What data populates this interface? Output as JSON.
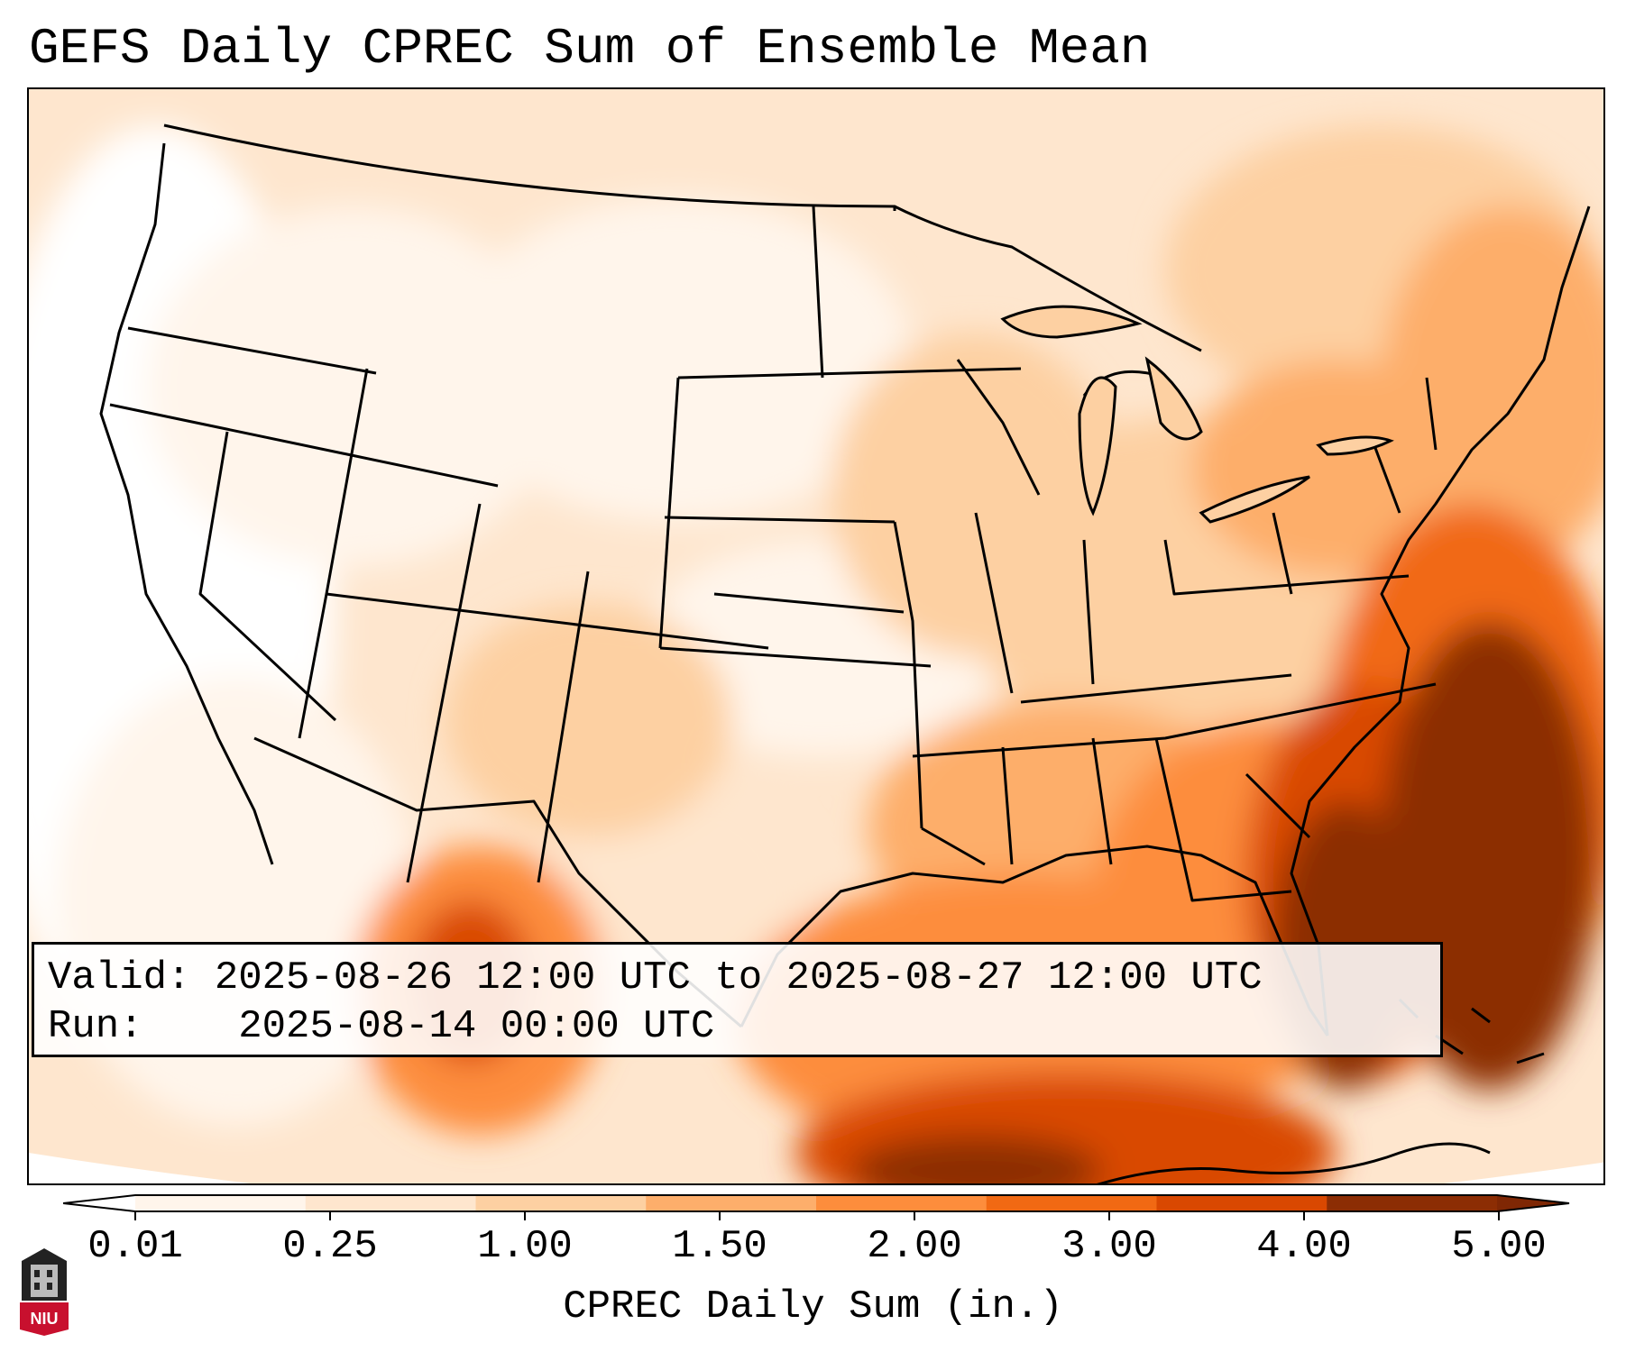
{
  "title": "GEFS Daily CPREC Sum of Ensemble Mean",
  "info": {
    "valid_label": "Valid:",
    "valid_value": "2025-08-26 12:00 UTC to 2025-08-27 12:00 UTC",
    "run_label": "Run:",
    "run_value": "2025-08-14 00:00 UTC"
  },
  "colorbar": {
    "label": "CPREC Daily Sum (in.)",
    "ticks": [
      "0.01",
      "0.25",
      "1.00",
      "1.50",
      "2.00",
      "3.00",
      "4.00",
      "5.00"
    ],
    "colors": [
      "#fff5eb",
      "#fee6ce",
      "#fdd0a2",
      "#fdae6b",
      "#fd8d3c",
      "#f16913",
      "#d94801",
      "#8c2d04"
    ],
    "under_color": "#ffffff",
    "over_color": "#7f2704"
  },
  "logo": {
    "text": "NIU",
    "icon": "niu-logo-icon"
  }
}
